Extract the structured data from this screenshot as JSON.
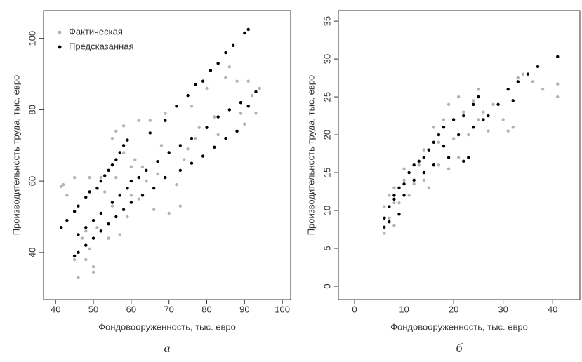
{
  "chart_data": [
    {
      "type": "scatter",
      "caption": "а",
      "xlabel": "Фондовооруженность, тыс. евро",
      "ylabel": "Производительность труда, тыс. евро",
      "xlim": [
        36.8,
        102.2
      ],
      "ylim": [
        26.8,
        107.8
      ],
      "xticks": [
        40,
        50,
        60,
        70,
        80,
        90,
        100
      ],
      "yticks": [
        40,
        60,
        80,
        100
      ],
      "legend": "top-left",
      "series": [
        {
          "name": "Фактическая",
          "color": "#b3b3b3",
          "x": [
            41.5,
            42,
            43,
            45,
            45,
            46,
            47,
            48,
            48,
            49,
            49,
            50,
            50,
            51,
            52,
            53,
            54,
            55,
            55,
            56,
            58,
            58,
            59,
            60,
            61,
            62,
            63,
            62,
            64,
            65,
            66,
            67,
            68,
            69,
            70,
            72,
            73,
            74,
            75,
            76,
            77,
            78,
            80,
            82,
            83,
            85,
            86,
            88,
            89,
            90,
            91,
            92,
            93,
            94,
            57,
            60,
            56
          ],
          "values": [
            58.5,
            59,
            56,
            61,
            38,
            33,
            44,
            46,
            38,
            41,
            61,
            36,
            34.5,
            47,
            61,
            57,
            44,
            53,
            72,
            74,
            75.5,
            68,
            50,
            64,
            66,
            77,
            64,
            55,
            60,
            77,
            52,
            62,
            70,
            79,
            51,
            59,
            53,
            66,
            69,
            81,
            72,
            75,
            86,
            78,
            73,
            89,
            92,
            88,
            79,
            76,
            88,
            84,
            79,
            86,
            45,
            56,
            61
          ]
        },
        {
          "name": "Предсказанная",
          "color": "#000000",
          "x": [
            41.5,
            43,
            45,
            46,
            48,
            49,
            51,
            52,
            53,
            54,
            55,
            56,
            57,
            58,
            59,
            65,
            69,
            72,
            75,
            77,
            79,
            81,
            83,
            85,
            87,
            90,
            91,
            45,
            46,
            48,
            50,
            52,
            54,
            56,
            58,
            60,
            63,
            66,
            69,
            73,
            76,
            79,
            82,
            85,
            88,
            91,
            93,
            46,
            48,
            50,
            52,
            55,
            57,
            59,
            60,
            62,
            64,
            67,
            70,
            73,
            76,
            80,
            83,
            86,
            89
          ],
          "values": [
            47,
            49,
            51.5,
            53,
            55.5,
            57,
            58,
            60,
            61.5,
            63,
            64.5,
            66,
            68,
            70,
            71.5,
            73.5,
            77,
            81,
            84,
            87,
            88,
            91,
            93,
            96,
            98,
            101.5,
            102.5,
            39,
            40,
            42,
            44,
            46,
            48,
            50,
            52,
            54,
            56,
            58,
            61,
            63,
            65,
            67,
            69.5,
            72,
            74,
            81,
            85,
            45,
            47,
            49,
            51,
            54,
            56,
            58,
            60,
            61,
            63,
            65.5,
            68,
            70,
            72,
            75,
            78,
            80,
            82
          ]
        }
      ]
    },
    {
      "type": "scatter",
      "caption": "б",
      "xlabel": "Фондовооруженность, тыс. евро",
      "ylabel": "Производительность труда, тыс. евро",
      "xlim": [
        -3.26,
        45.5
      ],
      "ylim": [
        -1.76,
        36.4
      ],
      "xticks": [
        0,
        10,
        20,
        30,
        40
      ],
      "yticks": [
        0,
        5,
        10,
        15,
        20,
        25,
        30,
        35
      ],
      "series": [
        {
          "color": "#b3b3b3",
          "x": [
            6,
            6,
            7,
            7,
            8,
            8,
            9,
            10,
            10,
            11,
            12,
            13,
            14,
            15,
            16,
            17,
            17,
            18,
            19,
            19,
            20,
            21,
            21,
            22,
            23,
            24,
            25,
            25,
            26,
            27,
            28,
            30,
            31,
            32,
            33,
            34,
            36,
            38,
            41,
            41,
            8,
            14
          ],
          "values": [
            7,
            10.5,
            9,
            12,
            8,
            13,
            11,
            14,
            15.5,
            12,
            13.5,
            16,
            18,
            13,
            21,
            19,
            16,
            22,
            24,
            15.5,
            19.5,
            25,
            17,
            23,
            20,
            24.5,
            26,
            22,
            23,
            20.5,
            24,
            22,
            20.5,
            21,
            27.5,
            28,
            27,
            26,
            26.7,
            25,
            11,
            14
          ]
        },
        {
          "color": "#000000",
          "x": [
            6,
            6,
            7,
            7,
            8,
            8,
            9,
            9,
            10,
            10,
            11,
            12,
            12,
            13,
            14,
            14,
            15,
            16,
            16,
            17,
            18,
            18,
            19,
            20,
            21,
            22,
            22,
            23,
            24,
            24,
            25,
            26,
            27,
            29,
            31,
            32,
            33,
            35,
            37,
            41
          ],
          "values": [
            9,
            7.8,
            8.5,
            10.5,
            11.5,
            12,
            9.5,
            13,
            13.5,
            12,
            15,
            14,
            16,
            16.5,
            15,
            17,
            18,
            16,
            19,
            20,
            18.5,
            21,
            17,
            22,
            20,
            22.5,
            16.5,
            17,
            24,
            21,
            25,
            22,
            22.5,
            24,
            26,
            24.5,
            27,
            28,
            29,
            30.3
          ]
        }
      ]
    }
  ]
}
